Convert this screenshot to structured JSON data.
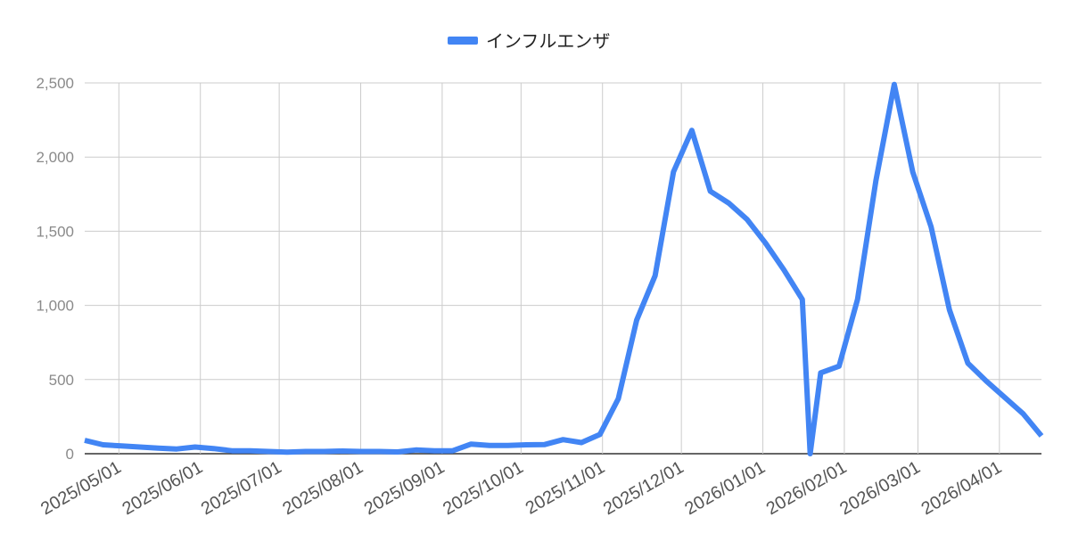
{
  "chart_data": {
    "type": "line",
    "legend_position": "top",
    "grid": true,
    "ylim": [
      0,
      2500
    ],
    "y_ticks": [
      "0",
      "500",
      "1,000",
      "1,500",
      "2,000",
      "2,500"
    ],
    "x_ticks": [
      "2025/05/01",
      "2025/06/01",
      "2025/07/01",
      "2025/08/01",
      "2025/09/01",
      "2025/10/01",
      "2025/11/01",
      "2025/12/01",
      "2026/01/01",
      "2026/02/01",
      "2026/03/01",
      "2026/04/01"
    ],
    "series": [
      {
        "name": "インフルエンザ",
        "color": "#4285f4",
        "points": [
          [
            "2025-04-18",
            90
          ],
          [
            "2025-04-25",
            60
          ],
          [
            "2025-05-02",
            52
          ],
          [
            "2025-05-09",
            45
          ],
          [
            "2025-05-16",
            38
          ],
          [
            "2025-05-23",
            32
          ],
          [
            "2025-05-30",
            45
          ],
          [
            "2025-06-06",
            35
          ],
          [
            "2025-06-13",
            20
          ],
          [
            "2025-06-20",
            20
          ],
          [
            "2025-06-27",
            15
          ],
          [
            "2025-07-04",
            10
          ],
          [
            "2025-07-11",
            15
          ],
          [
            "2025-07-18",
            15
          ],
          [
            "2025-07-25",
            18
          ],
          [
            "2025-08-01",
            15
          ],
          [
            "2025-08-08",
            15
          ],
          [
            "2025-08-15",
            12
          ],
          [
            "2025-08-22",
            25
          ],
          [
            "2025-08-29",
            20
          ],
          [
            "2025-09-05",
            20
          ],
          [
            "2025-09-12",
            65
          ],
          [
            "2025-09-19",
            55
          ],
          [
            "2025-09-26",
            55
          ],
          [
            "2025-10-03",
            60
          ],
          [
            "2025-10-10",
            62
          ],
          [
            "2025-10-17",
            95
          ],
          [
            "2025-10-24",
            75
          ],
          [
            "2025-10-31",
            130
          ],
          [
            "2025-11-07",
            370
          ],
          [
            "2025-11-14",
            900
          ],
          [
            "2025-11-21",
            1200
          ],
          [
            "2025-11-28",
            1900
          ],
          [
            "2025-12-05",
            2180
          ],
          [
            "2025-12-12",
            1770
          ],
          [
            "2025-12-19",
            1690
          ],
          [
            "2025-12-26",
            1580
          ],
          [
            "2026-01-02",
            1420
          ],
          [
            "2026-01-09",
            1240
          ],
          [
            "2026-01-16",
            1040
          ],
          [
            "2026-01-19",
            0
          ],
          [
            "2026-01-23",
            545
          ],
          [
            "2026-01-30",
            590
          ],
          [
            "2026-02-06",
            1040
          ],
          [
            "2026-02-13",
            1840
          ],
          [
            "2026-02-20",
            2490
          ],
          [
            "2026-02-27",
            1900
          ],
          [
            "2026-03-06",
            1530
          ],
          [
            "2026-03-13",
            970
          ],
          [
            "2026-03-20",
            610
          ],
          [
            "2026-03-27",
            490
          ],
          [
            "2026-04-03",
            380
          ],
          [
            "2026-04-10",
            270
          ],
          [
            "2026-04-17",
            120
          ]
        ]
      }
    ]
  }
}
